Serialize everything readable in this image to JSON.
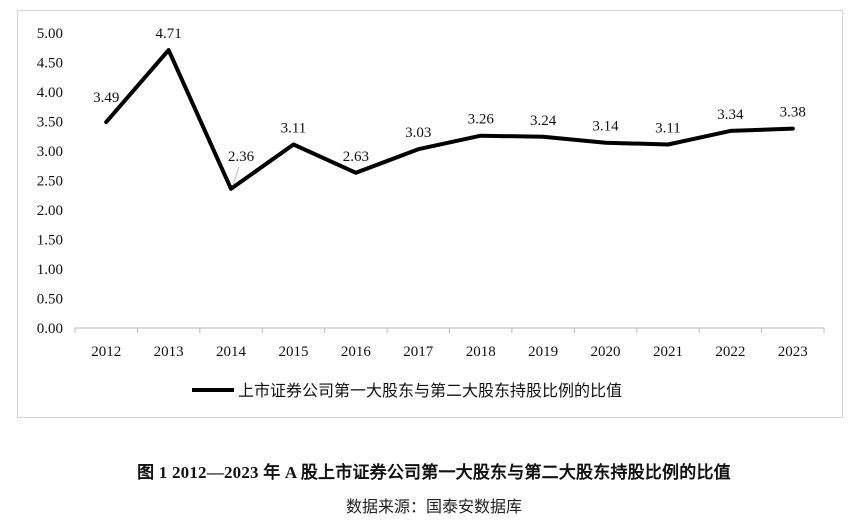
{
  "caption": "图 1 2012—2023 年 A 股上市证券公司第一大股东与第二大股东持股比例的比值",
  "source": "数据来源：国泰安数据库",
  "chart_data": {
    "type": "line",
    "title": "",
    "xlabel": "",
    "ylabel": "",
    "categories": [
      "2012",
      "2013",
      "2014",
      "2015",
      "2016",
      "2017",
      "2018",
      "2019",
      "2020",
      "2021",
      "2022",
      "2023"
    ],
    "series": [
      {
        "name": "上市证券公司第一大股东与第二大股东持股比例的比值",
        "values": [
          3.49,
          4.71,
          2.36,
          3.11,
          2.63,
          3.03,
          3.26,
          3.24,
          3.14,
          3.11,
          3.34,
          3.38
        ],
        "color": "#000000"
      }
    ],
    "data_labels": [
      "3.49",
      "4.71",
      "2.36",
      "3.11",
      "2.63",
      "3.03",
      "3.26",
      "3.24",
      "3.14",
      "3.11",
      "3.34",
      "3.38"
    ],
    "ylim": [
      0,
      5
    ],
    "yticks": [
      "0.00",
      "0.50",
      "1.00",
      "1.50",
      "2.00",
      "2.50",
      "3.00",
      "3.50",
      "4.00",
      "4.50",
      "5.00"
    ],
    "grid": false,
    "legend_position": "bottom"
  }
}
